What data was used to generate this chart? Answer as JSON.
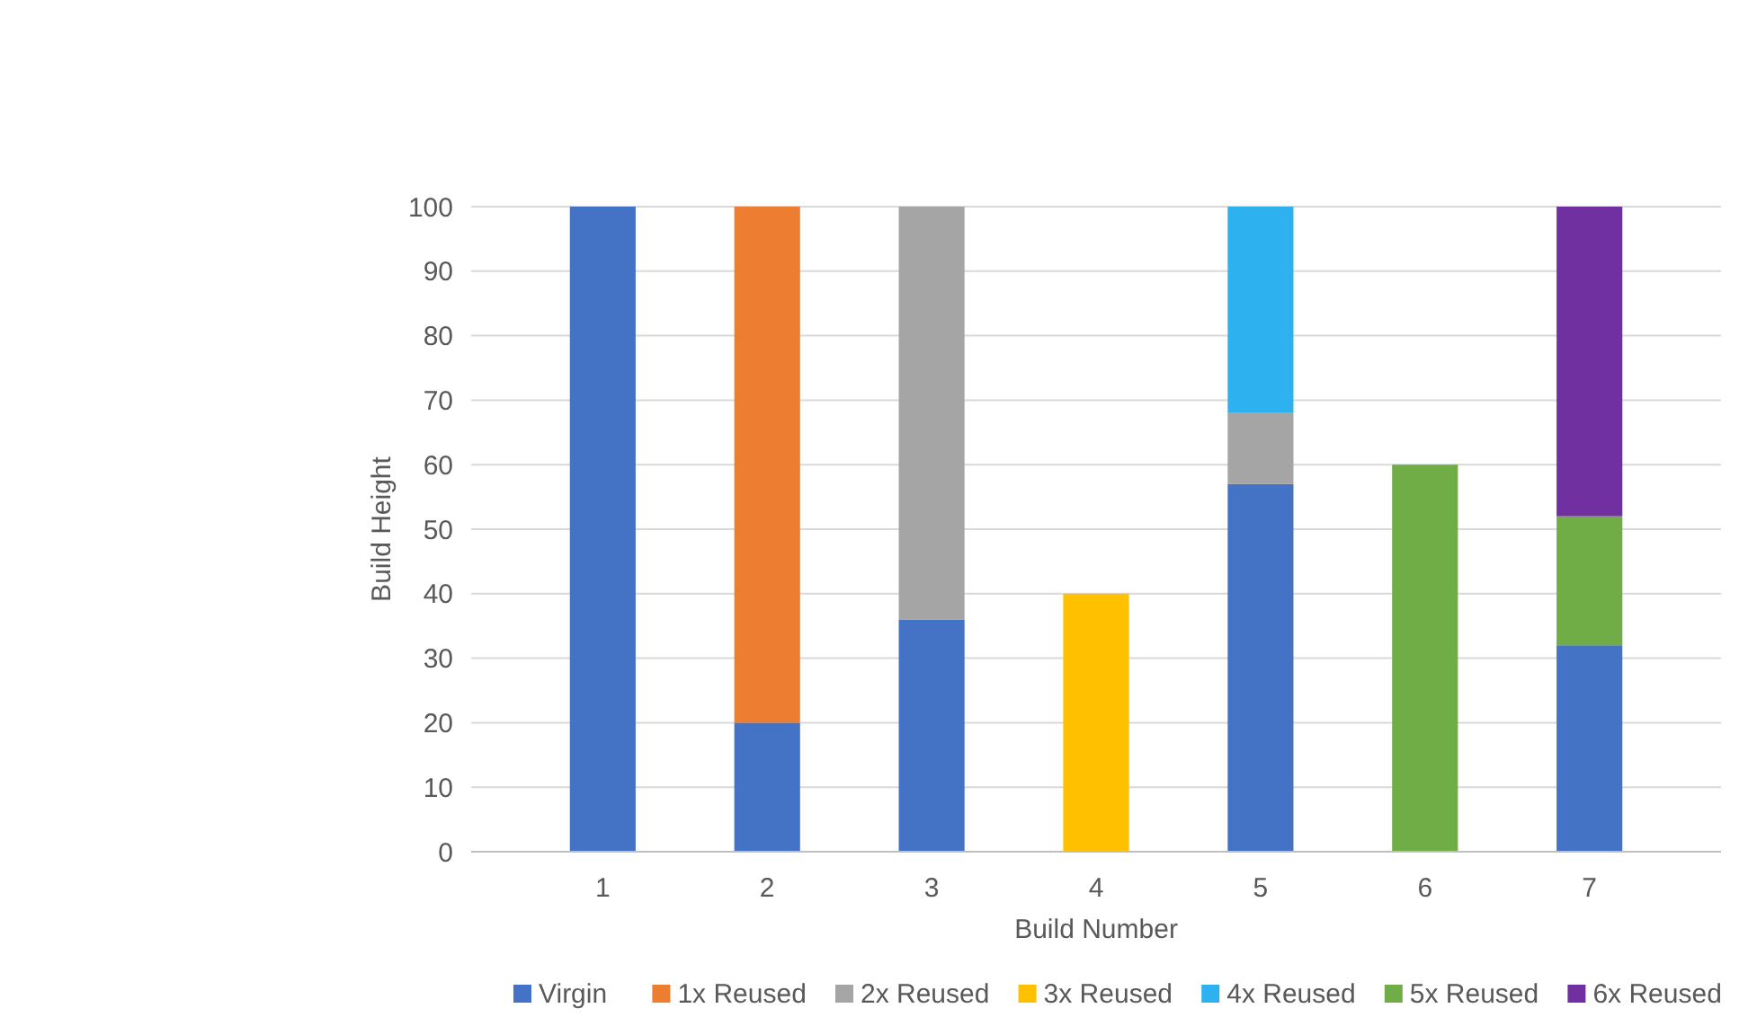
{
  "chart_data": {
    "type": "bar",
    "stacked": true,
    "xlabel": "Build Number",
    "ylabel": "Build Height",
    "categories": [
      "1",
      "2",
      "3",
      "4",
      "5",
      "6",
      "7"
    ],
    "series": [
      {
        "name": "Virgin",
        "color": "#4472c4",
        "values": [
          100,
          20,
          36,
          0,
          57,
          0,
          32
        ]
      },
      {
        "name": "1x Reused",
        "color": "#ed7d31",
        "values": [
          0,
          80,
          0,
          0,
          0,
          0,
          0
        ]
      },
      {
        "name": "2x Reused",
        "color": "#a5a5a5",
        "values": [
          0,
          0,
          64,
          0,
          11,
          0,
          0
        ]
      },
      {
        "name": "3x Reused",
        "color": "#ffc000",
        "values": [
          0,
          0,
          0,
          40,
          0,
          0,
          0
        ]
      },
      {
        "name": "4x Reused",
        "color": "#2eb2ef",
        "values": [
          0,
          0,
          0,
          0,
          32,
          0,
          0
        ]
      },
      {
        "name": "5x Reused",
        "color": "#70ad47",
        "values": [
          0,
          0,
          0,
          0,
          0,
          60,
          20
        ]
      },
      {
        "name": "6x Reused",
        "color": "#7030a0",
        "values": [
          0,
          0,
          0,
          0,
          0,
          0,
          48
        ]
      }
    ],
    "ylim": [
      0,
      100
    ],
    "yticks": [
      0,
      10,
      20,
      30,
      40,
      50,
      60,
      70,
      80,
      90,
      100
    ],
    "grid": "y",
    "legend": "bottom"
  }
}
